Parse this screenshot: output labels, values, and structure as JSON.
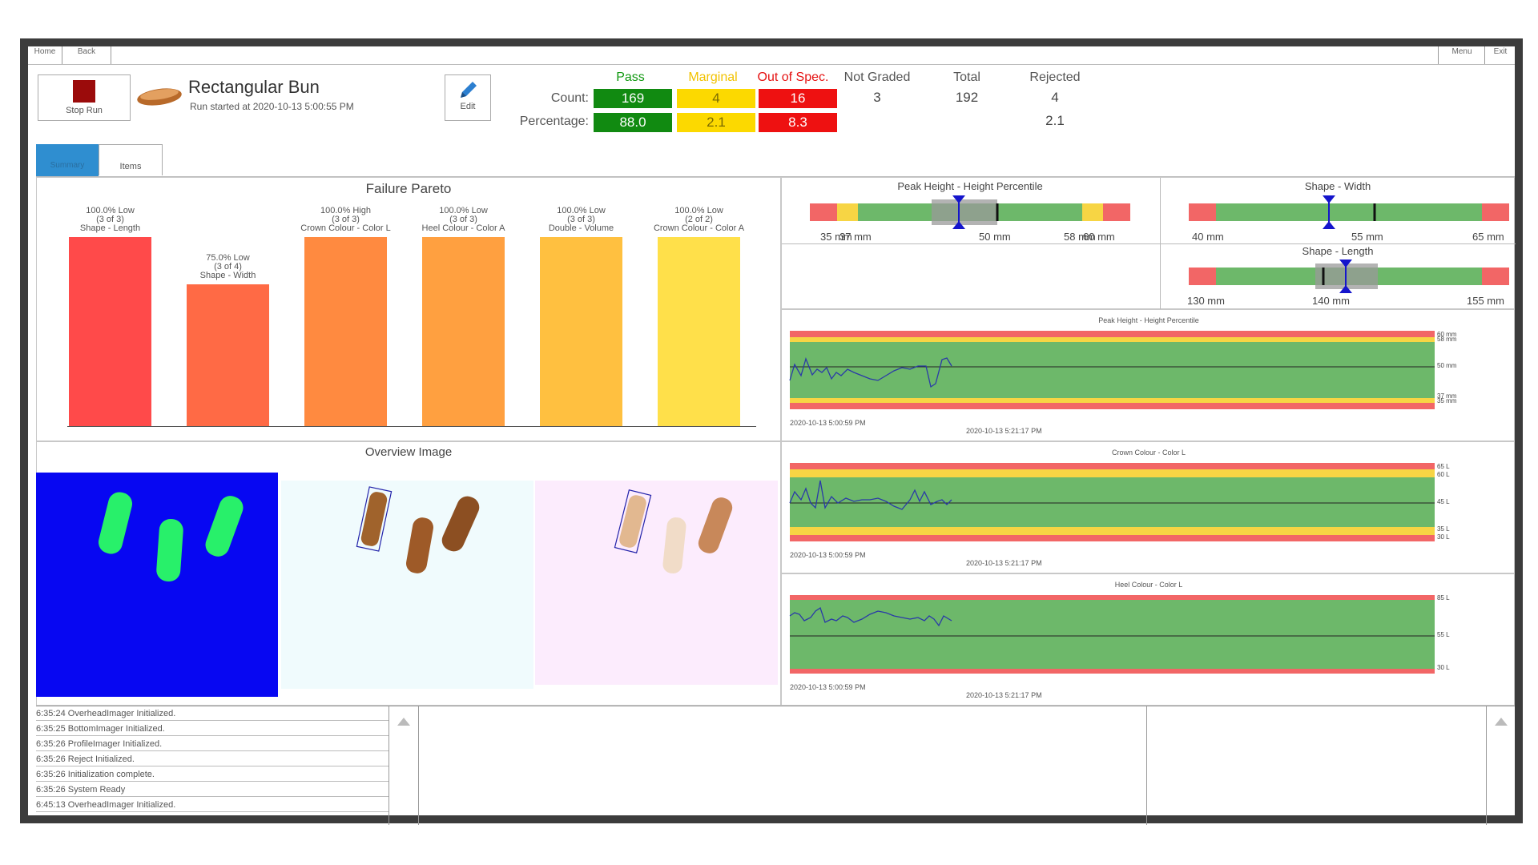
{
  "nav": {
    "home": "Home",
    "back": "Back",
    "menu": "Menu",
    "exit": "Exit"
  },
  "run": {
    "stop_label": "Stop Run",
    "product_name": "Rectangular Bun",
    "started": "Run started at 2020-10-13 5:00:55 PM",
    "edit_label": "Edit"
  },
  "stats": {
    "headers": {
      "pass": "Pass",
      "marginal": "Marginal",
      "out_of_spec": "Out of Spec.",
      "not_graded": "Not Graded",
      "total": "Total",
      "rejected": "Rejected"
    },
    "count_label": "Count:",
    "percentage_label": "Percentage:",
    "count": {
      "pass": "169",
      "marginal": "4",
      "out_of_spec": "16",
      "not_graded": "3",
      "total": "192",
      "rejected": "4"
    },
    "percentage": {
      "pass": "88.0",
      "marginal": "2.1",
      "out_of_spec": "8.3",
      "rejected": "2.1"
    }
  },
  "tabs": {
    "summary": "Summary",
    "items": "Items"
  },
  "pareto": {
    "title": "Failure Pareto",
    "bars": [
      {
        "l1": "100.0% Low",
        "l2": "(3 of 3)",
        "l3": "Shape - Length",
        "value": 100,
        "color": "#ff4a4a"
      },
      {
        "l1": "75.0% Low",
        "l2": "(3 of 4)",
        "l3": "Shape - Width",
        "value": 75,
        "color": "#ff6a45"
      },
      {
        "l1": "100.0% High",
        "l2": "(3 of 3)",
        "l3": "Crown Colour - Color L",
        "value": 100,
        "color": "#ff8a40"
      },
      {
        "l1": "100.0% Low",
        "l2": "(3 of 3)",
        "l3": "Heel Colour - Color A",
        "value": 100,
        "color": "#ffa040"
      },
      {
        "l1": "100.0% Low",
        "l2": "(3 of 3)",
        "l3": "Double - Volume",
        "value": 100,
        "color": "#ffc040"
      },
      {
        "l1": "100.0% Low",
        "l2": "(2 of 2)",
        "l3": "Crown Colour - Color A",
        "value": 100,
        "color": "#ffe04a"
      }
    ]
  },
  "gauges": {
    "peak": {
      "title": "Peak Height - Height Percentile",
      "t1": "35 mm",
      "t2": "37 mm",
      "t3": "50 mm",
      "t4": "58 mm",
      "t5": "60 mm"
    },
    "width": {
      "title": "Shape - Width",
      "t1": "40 mm",
      "t2": "55 mm",
      "t3": "65 mm"
    },
    "length": {
      "title": "Shape - Length",
      "t1": "130 mm",
      "t2": "140 mm",
      "t3": "155 mm"
    }
  },
  "trends": [
    {
      "title": "Peak Height - Height Percentile",
      "start": "2020-10-13 5:00:59 PM",
      "end": "2020-10-13 5:21:17 PM",
      "labels": [
        "60 mm",
        "58 mm",
        "50 mm",
        "37 mm",
        "35 mm"
      ]
    },
    {
      "title": "Crown Colour - Color L",
      "start": "2020-10-13 5:00:59 PM",
      "end": "2020-10-13 5:21:17 PM",
      "labels": [
        "65 L",
        "60 L",
        "45 L",
        "35 L",
        "30 L"
      ]
    },
    {
      "title": "Heel Colour - Color L",
      "start": "2020-10-13 5:00:59 PM",
      "end": "2020-10-13 5:21:17 PM",
      "labels": [
        "85 L",
        "55 L",
        "30 L"
      ]
    }
  ],
  "overview": {
    "title": "Overview Image"
  },
  "log": [
    "6:35:24 OverheadImager Initialized.",
    "6:35:25 BottomImager Initialized.",
    "6:35:26 ProfileImager Initialized.",
    "6:35:26 Reject Initialized.",
    "6:35:26 Initialization complete.",
    "6:35:26 System Ready",
    "6:45:13 OverheadImager Initialized."
  ]
}
